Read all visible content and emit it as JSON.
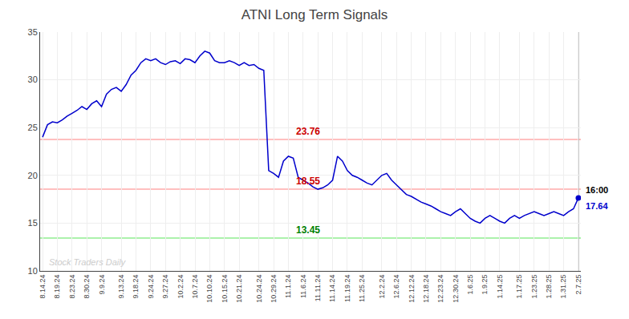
{
  "chart_data": {
    "type": "line",
    "title": "ATNI Long Term Signals",
    "color": "#0000cc",
    "grid": true,
    "ylim": [
      10,
      35
    ],
    "yticks": [
      10,
      15,
      20,
      25,
      30,
      35
    ],
    "categories": [
      "8.14.24",
      null,
      null,
      "8.19.24",
      null,
      null,
      "8.23.24",
      null,
      null,
      "8.30.24",
      null,
      null,
      "9.9.24",
      null,
      null,
      null,
      "9.13.24",
      null,
      null,
      "9.18.24",
      null,
      null,
      "9.24.24",
      null,
      null,
      "9.27.24",
      null,
      null,
      "10.2.24",
      null,
      null,
      "10.7.24",
      null,
      null,
      "10.10.24",
      null,
      null,
      "10.15.24",
      null,
      null,
      "10.21.24",
      null,
      null,
      null,
      "10.24.24",
      null,
      null,
      "10.29.24",
      null,
      null,
      "11.1.24",
      null,
      null,
      "11.6.24",
      null,
      null,
      "11.11.24",
      null,
      null,
      "11.14.24",
      null,
      null,
      "11.19.24",
      null,
      null,
      "11.25.24",
      null,
      null,
      null,
      "12.2.24",
      null,
      null,
      "12.6.24",
      null,
      null,
      "12.12.24",
      null,
      null,
      "12.18.24",
      null,
      null,
      "12.23.24",
      null,
      null,
      "12.30.24",
      null,
      null,
      "1.6.25",
      null,
      null,
      "1.9.25",
      null,
      null,
      "1.14.25",
      null,
      null,
      null,
      "1.17.25",
      null,
      null,
      "1.23.25",
      null,
      null,
      "1.28.25",
      null,
      null,
      "1.31.25",
      null,
      null,
      "2.7.25"
    ],
    "values": [
      24.0,
      25.3,
      25.6,
      25.5,
      25.8,
      26.2,
      26.5,
      26.8,
      27.2,
      26.9,
      27.5,
      27.8,
      27.2,
      28.5,
      29.0,
      29.2,
      28.8,
      29.5,
      30.5,
      31.0,
      31.8,
      32.2,
      32.0,
      32.2,
      31.8,
      31.6,
      31.9,
      32.0,
      31.7,
      32.2,
      32.1,
      31.8,
      32.5,
      33.0,
      32.8,
      32.0,
      31.8,
      31.8,
      32.0,
      31.8,
      31.5,
      31.8,
      31.5,
      31.6,
      31.2,
      31.0,
      20.5,
      20.2,
      19.8,
      21.5,
      22.0,
      21.8,
      19.8,
      19.5,
      19.2,
      18.8,
      18.55,
      18.7,
      19.0,
      19.5,
      22.0,
      21.5,
      20.5,
      20.0,
      19.8,
      19.5,
      19.2,
      19.0,
      19.5,
      20.0,
      20.2,
      19.5,
      19.0,
      18.5,
      18.0,
      17.8,
      17.5,
      17.2,
      17.0,
      16.8,
      16.5,
      16.2,
      16.0,
      15.8,
      16.2,
      16.5,
      16.0,
      15.5,
      15.2,
      15.0,
      15.5,
      15.8,
      15.5,
      15.2,
      15.0,
      15.5,
      15.8,
      15.5,
      15.8,
      16.0,
      16.2,
      16.0,
      15.8,
      16.0,
      16.2,
      16.0,
      15.8,
      16.2,
      16.5,
      17.64
    ],
    "reference_lines": [
      {
        "value": 23.76,
        "label": "23.76",
        "color": "#ffaaaa",
        "label_color": "#cc0000"
      },
      {
        "value": 18.55,
        "label": "18.55",
        "color": "#ffaaaa",
        "label_color": "#cc0000"
      },
      {
        "value": 13.45,
        "label": "13.45",
        "color": "#90ee90",
        "label_color": "#008000"
      }
    ],
    "last_point": {
      "label": "16:00",
      "label_color": "#000000",
      "value_label": "17.64",
      "value_color": "#0000cc",
      "line_color": "#888888"
    },
    "watermark": {
      "text": "Stock Traders Daily",
      "color": "#cccccc"
    }
  }
}
